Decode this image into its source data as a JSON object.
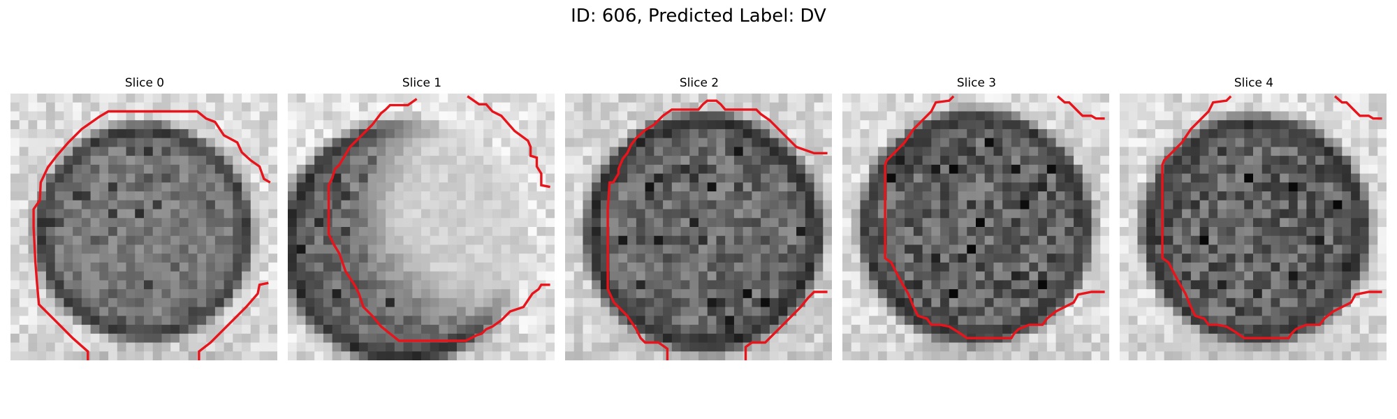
{
  "figure": {
    "title": "ID: 606, Predicted Label: DV"
  },
  "slices": [
    {
      "title": "Slice 0"
    },
    {
      "title": "Slice 1"
    },
    {
      "title": "Slice 2"
    },
    {
      "title": "Slice 3"
    },
    {
      "title": "Slice 4"
    }
  ],
  "colors": {
    "contour": "#e8141b",
    "colormap": "gray"
  }
}
